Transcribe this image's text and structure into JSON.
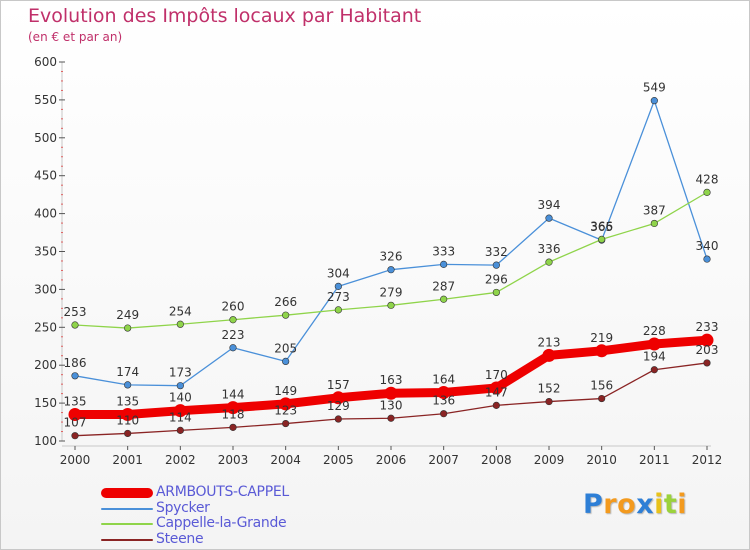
{
  "chart_data": {
    "type": "line",
    "title": "Evolution des Impôts locaux par Habitant",
    "subtitle": "(en € et par an)",
    "xlabel": "",
    "ylabel": "",
    "ylim": [
      100,
      600
    ],
    "yticks": [
      "100",
      "150",
      "200",
      "250",
      "300",
      "350",
      "400",
      "450",
      "500",
      "550",
      "600"
    ],
    "categories": [
      "2000",
      "2001",
      "2002",
      "2003",
      "2004",
      "2005",
      "2006",
      "2007",
      "2008",
      "2009",
      "2010",
      "2011",
      "2012"
    ],
    "grid": false,
    "legend_position": "bottom-left",
    "series": [
      {
        "name": "ARMBOUTS-CAPPEL",
        "color": "#ee0000",
        "emphasis": "thick",
        "values": [
          135,
          135,
          140,
          144,
          149,
          157,
          163,
          164,
          170,
          213,
          219,
          228,
          233
        ]
      },
      {
        "name": "Spycker",
        "color": "#4a90d9",
        "emphasis": "normal",
        "values": [
          186,
          174,
          173,
          223,
          205,
          304,
          326,
          333,
          332,
          394,
          365,
          549,
          340
        ]
      },
      {
        "name": "Cappelle-la-Grande",
        "color": "#8fd44a",
        "emphasis": "normal",
        "values": [
          253,
          249,
          254,
          260,
          266,
          273,
          279,
          287,
          296,
          336,
          366,
          387,
          428
        ]
      },
      {
        "name": "Steene",
        "color": "#8a2424",
        "emphasis": "normal",
        "values": [
          107,
          110,
          114,
          118,
          123,
          129,
          130,
          136,
          147,
          152,
          156,
          194,
          203
        ]
      }
    ]
  },
  "logo": {
    "letters": [
      {
        "char": "P",
        "color": "#2e7fd6"
      },
      {
        "char": "r",
        "color": "#f39a1e"
      },
      {
        "char": "o",
        "color": "#f39a1e"
      },
      {
        "char": "x",
        "color": "#2e7fd6"
      },
      {
        "char": "i",
        "color": "#e8c21b"
      },
      {
        "char": "t",
        "color": "#9bd23c"
      },
      {
        "char": "i",
        "color": "#f39a1e"
      }
    ]
  }
}
